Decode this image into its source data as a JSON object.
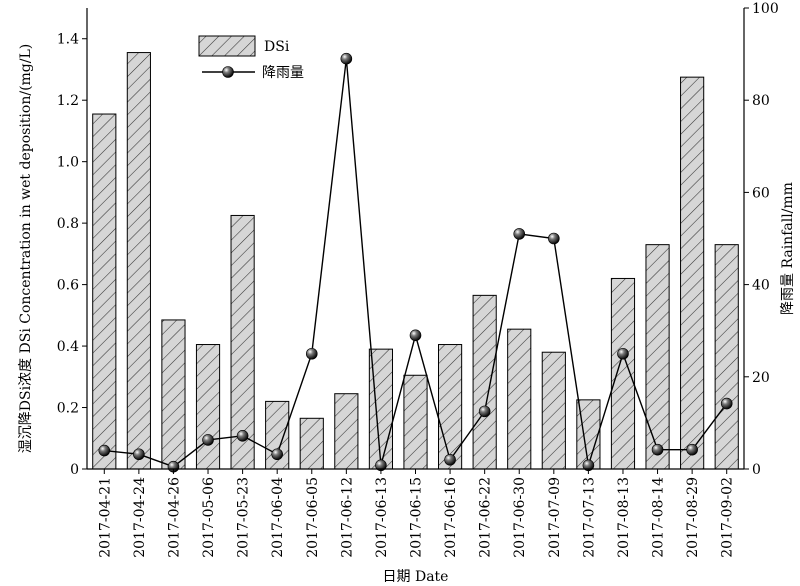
{
  "chart_data": {
    "type": "bar",
    "categories": [
      "2017-04-21",
      "2017-04-24",
      "2017-04-26",
      "2017-05-06",
      "2017-05-23",
      "2017-06-04",
      "2017-06-05",
      "2017-06-12",
      "2017-06-13",
      "2017-06-15",
      "2017-06-16",
      "2017-06-22",
      "2017-06-30",
      "2017-07-09",
      "2017-07-13",
      "2017-08-13",
      "2017-08-14",
      "2017-08-29",
      "2017-09-02"
    ],
    "xlabel": "日期 Date",
    "ylabel_left": "湿沉降DSi浓度 DSi Concentration in wet deposition/(mg/L)",
    "ylabel_right": "降雨量 Rainfall/mm",
    "ylim_left": [
      0,
      1.5
    ],
    "ylim_right": [
      0,
      100
    ],
    "yticks_left": [
      "0",
      "0.2",
      "0.4",
      "0.6",
      "0.8",
      "1.0",
      "1.2",
      "1.4"
    ],
    "yticks_right": [
      "0",
      "20",
      "40",
      "60",
      "80",
      "100"
    ],
    "grid": false,
    "legend_position": "top-left",
    "series": [
      {
        "name": "DSi",
        "type": "bar",
        "axis": "left",
        "pattern": "hatched",
        "values": [
          1.155,
          1.355,
          0.485,
          0.405,
          0.825,
          0.22,
          0.165,
          0.245,
          0.39,
          0.305,
          0.405,
          0.565,
          0.455,
          0.38,
          0.225,
          0.62,
          0.73,
          1.275,
          0.73
        ]
      },
      {
        "name": "降雨量",
        "type": "line",
        "axis": "right",
        "marker": "sphere",
        "values": [
          4,
          3.2,
          0.5,
          6.3,
          7.2,
          3.2,
          25,
          89,
          0.8,
          29,
          2,
          12.5,
          51,
          50,
          0.8,
          25,
          4.2,
          4.2,
          14.2
        ]
      }
    ]
  }
}
